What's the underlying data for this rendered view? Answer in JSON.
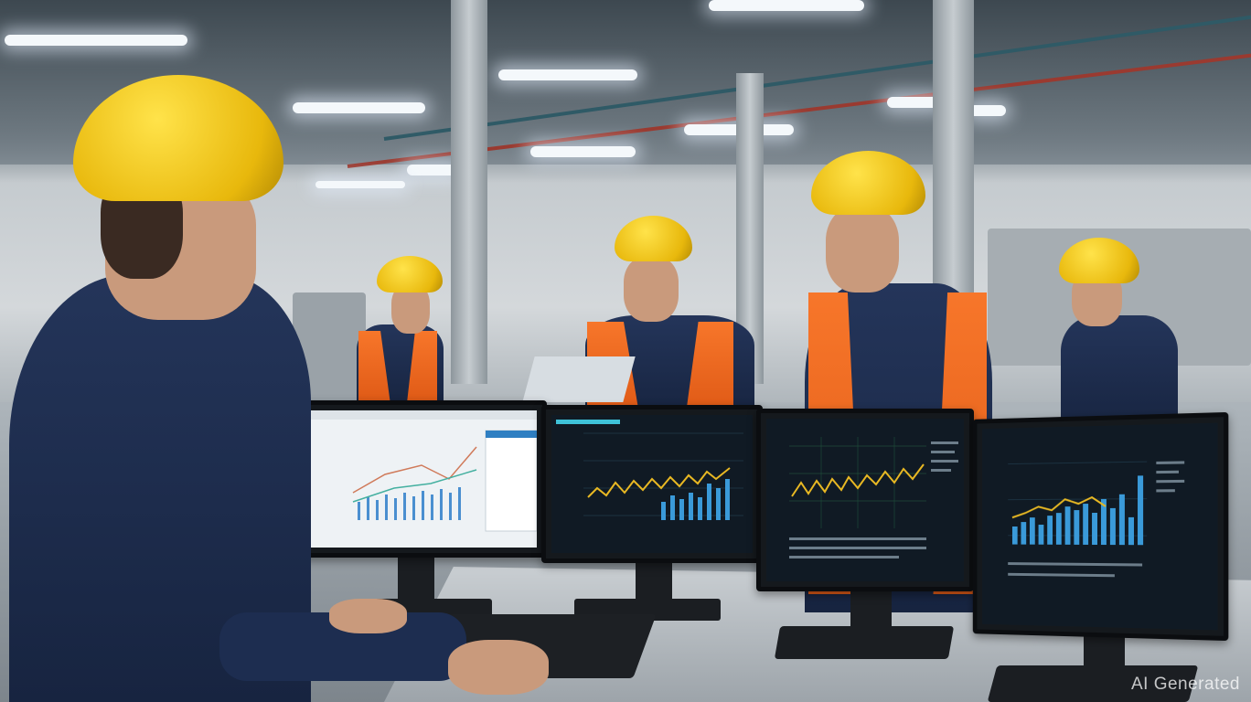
{
  "scene": {
    "description_tags": [
      "factory-floor",
      "workers",
      "monitors",
      "dashboards"
    ],
    "colors": {
      "helmet": "#f0c419",
      "vest": "#f26b21",
      "uniform": "#1f2f52",
      "screen": "#101a24",
      "chart_line": "#e8b823",
      "chart_bar": "#3a9ad9"
    }
  },
  "watermark": {
    "text": "AI Generated"
  }
}
